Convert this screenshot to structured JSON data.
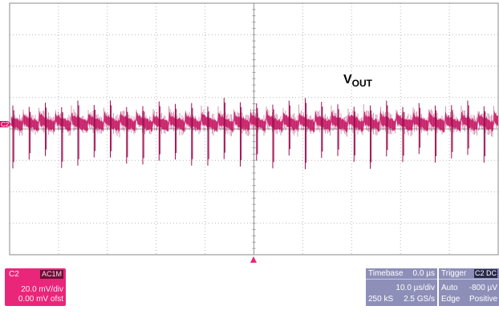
{
  "trace": {
    "label": "V",
    "label_sub": "OUT",
    "channel_marker": "C2",
    "color": "#d6156a",
    "color_dark": "#9e0d4c"
  },
  "channel": {
    "name": "C2",
    "coupling": "AC1M",
    "volts_per_div": "20.0 mV/div",
    "offset": "0.00 mV ofst",
    "color": "#e9267a"
  },
  "timebase": {
    "title": "Timebase",
    "delay": "0.0 µs",
    "time_per_div": "10.0 µs/div",
    "samples": "250 kS",
    "sample_rate": "2.5 GS/s"
  },
  "trigger": {
    "title": "Trigger",
    "source_badge": "C2 DC",
    "mode": "Auto",
    "level": "-800 µV",
    "type": "Edge",
    "slope": "Positive"
  }
}
